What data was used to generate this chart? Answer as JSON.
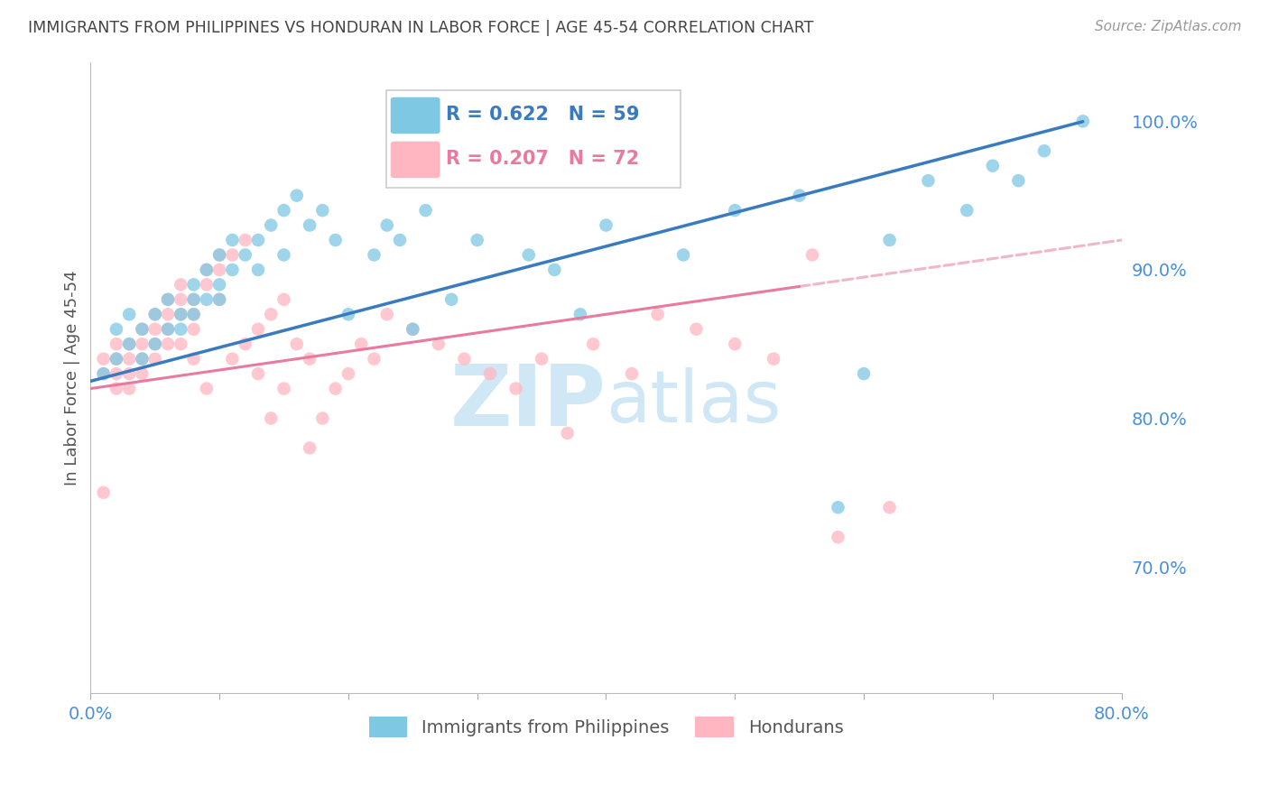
{
  "title": "IMMIGRANTS FROM PHILIPPINES VS HONDURAN IN LABOR FORCE | AGE 45-54 CORRELATION CHART",
  "source": "Source: ZipAtlas.com",
  "ylabel": "In Labor Force | Age 45-54",
  "legend_label_blue": "Immigrants from Philippines",
  "legend_label_pink": "Hondurans",
  "R_blue": 0.622,
  "N_blue": 59,
  "R_pink": 0.207,
  "N_pink": 72,
  "color_blue": "#7ec8e3",
  "color_pink": "#ffb6c1",
  "color_blue_line": "#3a7abf",
  "color_pink_line": "#e87a9f",
  "xmin": 0.0,
  "xmax": 0.8,
  "ymin": 0.615,
  "ymax": 1.04,
  "yticks": [
    0.7,
    0.8,
    0.9,
    1.0
  ],
  "ytick_labels": [
    "70.0%",
    "80.0%",
    "90.0%",
    "100.0%"
  ],
  "xticks": [
    0.0,
    0.1,
    0.2,
    0.3,
    0.4,
    0.5,
    0.6,
    0.7,
    0.8
  ],
  "philippines_x": [
    0.01,
    0.02,
    0.02,
    0.03,
    0.03,
    0.04,
    0.04,
    0.05,
    0.05,
    0.06,
    0.06,
    0.07,
    0.07,
    0.08,
    0.08,
    0.08,
    0.09,
    0.09,
    0.1,
    0.1,
    0.1,
    0.11,
    0.11,
    0.12,
    0.13,
    0.13,
    0.14,
    0.15,
    0.15,
    0.16,
    0.17,
    0.18,
    0.19,
    0.2,
    0.22,
    0.23,
    0.24,
    0.25,
    0.26,
    0.28,
    0.3,
    0.32,
    0.34,
    0.36,
    0.38,
    0.4,
    0.43,
    0.46,
    0.5,
    0.55,
    0.58,
    0.6,
    0.62,
    0.65,
    0.68,
    0.7,
    0.72,
    0.74,
    0.77
  ],
  "philippines_y": [
    0.83,
    0.84,
    0.86,
    0.85,
    0.87,
    0.84,
    0.86,
    0.85,
    0.87,
    0.86,
    0.88,
    0.87,
    0.86,
    0.88,
    0.87,
    0.89,
    0.88,
    0.9,
    0.89,
    0.91,
    0.88,
    0.9,
    0.92,
    0.91,
    0.92,
    0.9,
    0.93,
    0.94,
    0.91,
    0.95,
    0.93,
    0.94,
    0.92,
    0.87,
    0.91,
    0.93,
    0.92,
    0.86,
    0.94,
    0.88,
    0.92,
    0.97,
    0.91,
    0.9,
    0.87,
    0.93,
    0.96,
    0.91,
    0.94,
    0.95,
    0.74,
    0.83,
    0.92,
    0.96,
    0.94,
    0.97,
    0.96,
    0.98,
    1.0
  ],
  "honduran_x": [
    0.01,
    0.01,
    0.01,
    0.02,
    0.02,
    0.02,
    0.02,
    0.03,
    0.03,
    0.03,
    0.03,
    0.04,
    0.04,
    0.04,
    0.04,
    0.05,
    0.05,
    0.05,
    0.05,
    0.06,
    0.06,
    0.06,
    0.06,
    0.07,
    0.07,
    0.07,
    0.07,
    0.08,
    0.08,
    0.08,
    0.08,
    0.09,
    0.09,
    0.09,
    0.1,
    0.1,
    0.1,
    0.11,
    0.11,
    0.12,
    0.12,
    0.13,
    0.13,
    0.14,
    0.14,
    0.15,
    0.15,
    0.16,
    0.17,
    0.17,
    0.18,
    0.19,
    0.2,
    0.21,
    0.22,
    0.23,
    0.25,
    0.27,
    0.29,
    0.31,
    0.33,
    0.35,
    0.37,
    0.39,
    0.42,
    0.44,
    0.47,
    0.5,
    0.53,
    0.56,
    0.58,
    0.62
  ],
  "honduran_y": [
    0.84,
    0.83,
    0.75,
    0.85,
    0.84,
    0.83,
    0.82,
    0.85,
    0.84,
    0.83,
    0.82,
    0.86,
    0.85,
    0.84,
    0.83,
    0.87,
    0.86,
    0.85,
    0.84,
    0.88,
    0.87,
    0.86,
    0.85,
    0.89,
    0.88,
    0.87,
    0.85,
    0.88,
    0.87,
    0.86,
    0.84,
    0.9,
    0.89,
    0.82,
    0.91,
    0.9,
    0.88,
    0.91,
    0.84,
    0.92,
    0.85,
    0.83,
    0.86,
    0.87,
    0.8,
    0.88,
    0.82,
    0.85,
    0.84,
    0.78,
    0.8,
    0.82,
    0.83,
    0.85,
    0.84,
    0.87,
    0.86,
    0.85,
    0.84,
    0.83,
    0.82,
    0.84,
    0.79,
    0.85,
    0.83,
    0.87,
    0.86,
    0.85,
    0.84,
    0.91,
    0.72,
    0.74
  ],
  "background_color": "#ffffff",
  "grid_color": "#cccccc",
  "title_color": "#444444",
  "watermark_zip": "ZIP",
  "watermark_atlas": "atlas",
  "watermark_color": "#d0e8f5"
}
